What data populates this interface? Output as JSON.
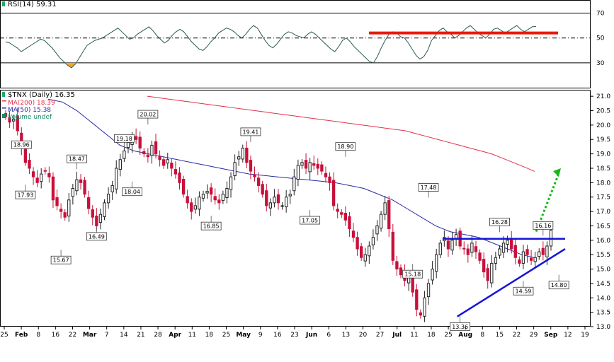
{
  "rsi": {
    "label": "RSI(14) 59.31",
    "levels": [
      70,
      50,
      30
    ],
    "ticks": [
      70,
      50,
      30
    ],
    "values": [
      47,
      46,
      44,
      42,
      39,
      41,
      43,
      45,
      47,
      49,
      48,
      45,
      42,
      38,
      34,
      31,
      28,
      26,
      29,
      34,
      39,
      44,
      46,
      48,
      49,
      50,
      52,
      54,
      56,
      58,
      55,
      52,
      49,
      50,
      53,
      55,
      57,
      59,
      56,
      52,
      49,
      46,
      48,
      52,
      55,
      57,
      55,
      51,
      47,
      44,
      41,
      40,
      43,
      47,
      50,
      54,
      56,
      58,
      57,
      55,
      52,
      50,
      53,
      57,
      60,
      58,
      53,
      48,
      44,
      42,
      45,
      49,
      53,
      55,
      54,
      52,
      51,
      50,
      53,
      55,
      53,
      50,
      47,
      44,
      41,
      39,
      43,
      48,
      50,
      47,
      43,
      40,
      37,
      34,
      31,
      30,
      35,
      42,
      48,
      53,
      55,
      54,
      51,
      50,
      46,
      41,
      36,
      33,
      35,
      40,
      48,
      52,
      56,
      58,
      55,
      53,
      50,
      52,
      55,
      58,
      60,
      57,
      54,
      52,
      50,
      53,
      57,
      58,
      56,
      54,
      56,
      58,
      60,
      57,
      55,
      57,
      59,
      59.31
    ],
    "oversold_fill_color": "#f5a623",
    "overlay_color": "#e8190d"
  },
  "price": {
    "label": "$TNX (Daily) 16.35",
    "legend": [
      {
        "name": "MA(200) 18.39",
        "color": "#e3304a"
      },
      {
        "name": "MA(50) 15.38",
        "color": "#2a2aa8"
      },
      {
        "name": "Volume undef",
        "color": "#1a8a6a"
      }
    ],
    "ticks": [
      21.0,
      20.5,
      20.0,
      19.5,
      19.0,
      18.5,
      18.0,
      17.5,
      17.0,
      16.5,
      16.0,
      15.5,
      15.0,
      14.5,
      14.0,
      13.5,
      13.0
    ],
    "up_color": "#222222",
    "down_color": "#c8103a",
    "ma200_color": "#e3304a",
    "ma50_color": "#2a2aa8",
    "resistance_color": "#1414d8",
    "projection_color": "#18b818"
  },
  "x_labels": [
    "25",
    "Feb",
    "8",
    "16",
    "22",
    "Mar",
    "7",
    "14",
    "21",
    "28",
    "Apr",
    "11",
    "18",
    "25",
    "May",
    "9",
    "16",
    "23",
    "Jun",
    "6",
    "13",
    "20",
    "27",
    "Jul",
    "11",
    "18",
    "25",
    "Aug",
    "8",
    "15",
    "22",
    "29",
    "Sep",
    "12",
    "19"
  ],
  "x_label_bold": [
    "Feb",
    "Mar",
    "Apr",
    "May",
    "Jun",
    "Jul",
    "Aug",
    "Sep"
  ],
  "chart_data": {
    "type": "candlestick",
    "ylim": [
      13.0,
      21.2
    ],
    "closes": [
      20.3,
      20.1,
      20.2,
      19.8,
      19.2,
      18.7,
      18.5,
      18.2,
      18.0,
      18.3,
      18.4,
      18.2,
      17.4,
      17.2,
      17.0,
      16.8,
      17.4,
      17.8,
      18.1,
      18.0,
      17.6,
      17.1,
      16.8,
      16.5,
      16.9,
      17.3,
      17.6,
      17.9,
      18.5,
      18.8,
      19.1,
      19.4,
      19.6,
      19.5,
      19.2,
      19.0,
      18.9,
      19.3,
      19.0,
      18.8,
      18.6,
      18.8,
      18.5,
      18.3,
      18.0,
      17.6,
      17.3,
      17.0,
      17.2,
      17.5,
      17.6,
      17.7,
      17.6,
      17.4,
      17.3,
      17.6,
      17.8,
      18.2,
      18.7,
      18.9,
      19.2,
      18.7,
      18.4,
      18.2,
      17.9,
      17.6,
      17.2,
      17.3,
      17.5,
      17.3,
      17.2,
      17.5,
      17.6,
      18.2,
      18.6,
      18.7,
      18.5,
      18.7,
      18.6,
      18.5,
      18.4,
      18.2,
      18.0,
      17.2,
      17.0,
      16.9,
      16.7,
      16.4,
      16.1,
      15.7,
      15.4,
      15.5,
      15.8,
      16.1,
      16.5,
      16.9,
      17.3,
      16.4,
      15.3,
      15.0,
      14.8,
      14.6,
      14.7,
      14.2,
      13.6,
      13.4,
      14.0,
      14.5,
      15.0,
      15.5,
      15.9,
      16.1,
      15.7,
      16.0,
      16.2,
      15.8,
      15.7,
      15.5,
      15.9,
      15.6,
      15.3,
      14.9,
      14.6,
      15.2,
      15.4,
      15.7,
      15.9,
      16.0,
      15.7,
      15.4,
      15.2,
      15.6,
      15.5,
      15.3,
      15.4,
      15.6,
      15.5,
      15.8,
      16.35
    ],
    "ma200": [
      21.0,
      20.95,
      20.9,
      20.85,
      20.8,
      20.75,
      20.7,
      20.65,
      20.6,
      20.55,
      20.5,
      20.45,
      20.4,
      20.35,
      20.3,
      20.25,
      20.2,
      20.15,
      20.1,
      20.05,
      20.0,
      19.95,
      19.9,
      19.85,
      19.8,
      19.7,
      19.6,
      19.5,
      19.4,
      19.3,
      19.2,
      19.1,
      19.0,
      18.85,
      18.7,
      18.55,
      18.39
    ],
    "ma50": [
      20.9,
      20.8,
      20.5,
      20.1,
      19.7,
      19.3,
      19.1,
      19.0,
      18.9,
      18.8,
      18.7,
      18.6,
      18.5,
      18.4,
      18.3,
      18.25,
      18.2,
      18.15,
      18.1,
      18.05,
      18.0,
      17.9,
      17.8,
      17.6,
      17.4,
      17.1,
      16.8,
      16.5,
      16.3,
      16.2,
      16.1,
      15.9,
      15.7,
      15.5,
      15.38
    ],
    "annotations": [
      {
        "i": 4,
        "label": "18.96",
        "pos": "above",
        "y": 18.96
      },
      {
        "i": 5,
        "label": "17.93",
        "pos": "below",
        "y": 17.93
      },
      {
        "i": 14,
        "label": "15.67",
        "pos": "below",
        "y": 15.67
      },
      {
        "i": 18,
        "label": "18.47",
        "pos": "above",
        "y": 18.47
      },
      {
        "i": 23,
        "label": "16.49",
        "pos": "below",
        "y": 16.49
      },
      {
        "i": 30,
        "label": "19.18",
        "pos": "above",
        "y": 19.18
      },
      {
        "i": 32,
        "label": "18.04",
        "pos": "below",
        "y": 18.04
      },
      {
        "i": 36,
        "label": "20.02",
        "pos": "above",
        "y": 20.02
      },
      {
        "i": 52,
        "label": "16.85",
        "pos": "below",
        "y": 16.85
      },
      {
        "i": 62,
        "label": "19.41",
        "pos": "above",
        "y": 19.41
      },
      {
        "i": 77,
        "label": "17.05",
        "pos": "below",
        "y": 17.05
      },
      {
        "i": 86,
        "label": "18.90",
        "pos": "above",
        "y": 18.9
      },
      {
        "i": 103,
        "label": "15.18",
        "pos": "below",
        "y": 15.18
      },
      {
        "i": 107,
        "label": "17.48",
        "pos": "above",
        "y": 17.48
      },
      {
        "i": 115,
        "label": "13.36",
        "pos": "below",
        "y": 13.36
      },
      {
        "i": 125,
        "label": "16.28",
        "pos": "above",
        "y": 16.28
      },
      {
        "i": 131,
        "label": "14.59",
        "pos": "below",
        "y": 14.59
      },
      {
        "i": 136,
        "label": "16.16",
        "pos": "above",
        "y": 16.16
      },
      {
        "i": 140,
        "label": "14.80",
        "pos": "below",
        "y": 14.8
      }
    ],
    "resistance": 16.05,
    "support_line": {
      "from": 13.35,
      "to": 15.7
    },
    "projection_target": 18.5
  }
}
